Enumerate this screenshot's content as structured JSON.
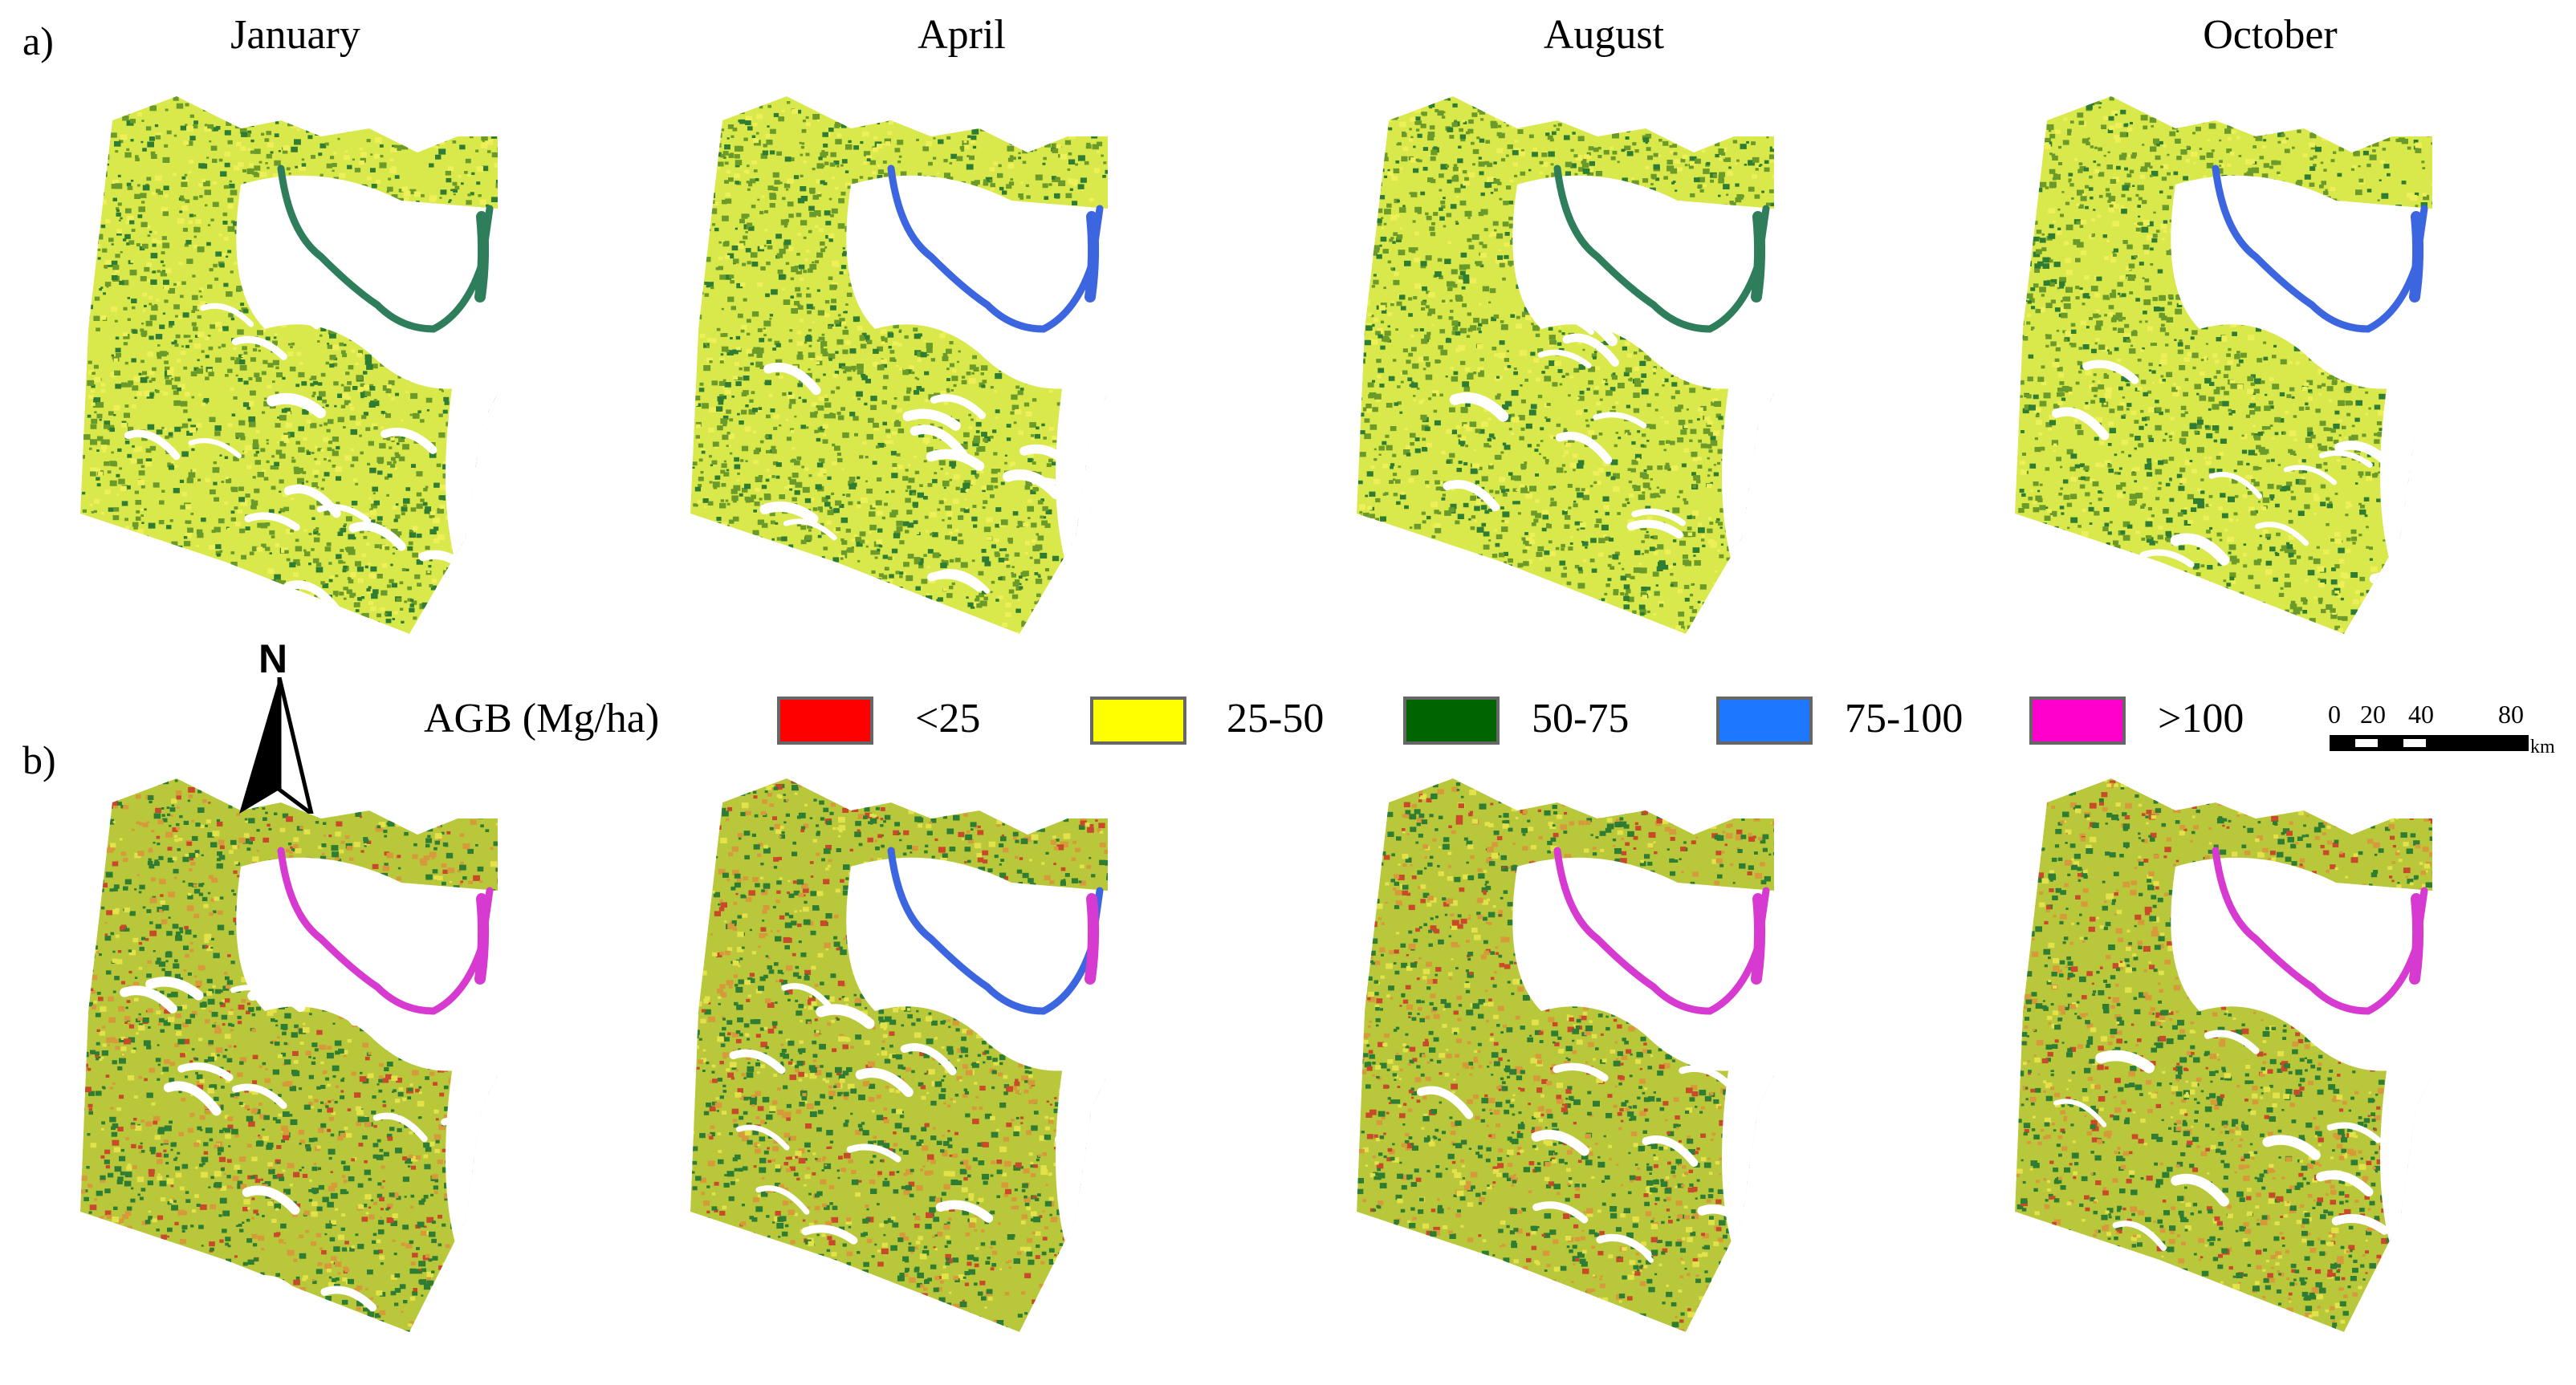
{
  "panels": {
    "row_a_label": "a)",
    "row_b_label": "b)",
    "months": [
      "January",
      "April",
      "August",
      "October"
    ]
  },
  "legend": {
    "title": "AGB (Mg/ha)",
    "classes": [
      {
        "label": "<25",
        "color": "#ff0000"
      },
      {
        "label": "25-50",
        "color": "#ffff00"
      },
      {
        "label": "50-75",
        "color": "#006400"
      },
      {
        "label": "75-100",
        "color": "#1e78ff"
      },
      {
        "label": ">100",
        "color": "#ff00cc"
      }
    ]
  },
  "north_arrow": {
    "label": "N"
  },
  "scale_bar": {
    "ticks": [
      "0",
      "20",
      "40",
      "80"
    ],
    "unit": "km"
  },
  "map_colors": {
    "row_a_base": "#d9e84a",
    "row_a_mix": "#6a9a2a",
    "row_b_base": "#b9c83a",
    "row_b_mix": "#d79a3a",
    "forest": "#2f7d32",
    "river": "#2e7d5b",
    "river_blue": "#3c66e0",
    "river_pink": "#d63ad0"
  }
}
